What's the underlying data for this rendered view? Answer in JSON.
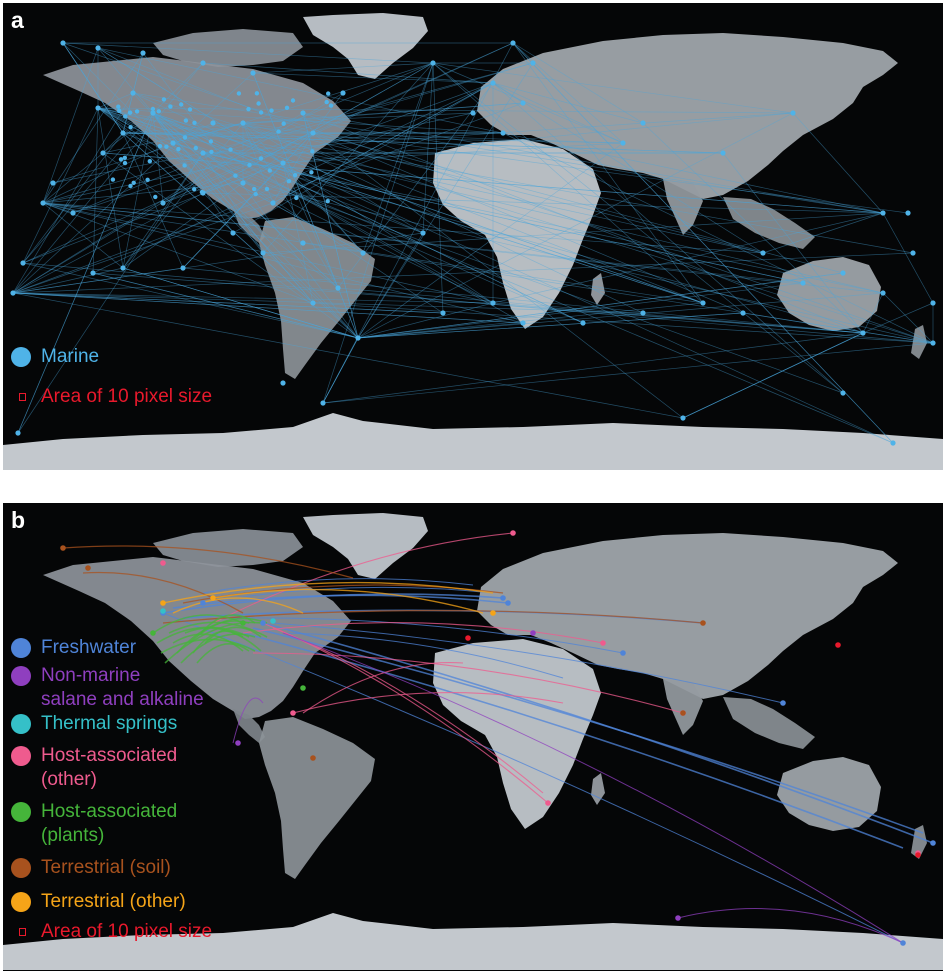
{
  "panel_a": {
    "letter": "a",
    "legend": [
      {
        "label": "Marine",
        "color": "#4fb3e8",
        "marker": "dot"
      },
      {
        "label": "Area of 10 pixel size",
        "color": "#e8192c",
        "marker": "square"
      }
    ],
    "link_color": "#4aa6dc"
  },
  "panel_b": {
    "letter": "b",
    "legend": [
      {
        "label": "Freshwater",
        "color": "#4f84d8",
        "marker": "dot"
      },
      {
        "label": "Non-marine",
        "label2": "salane and alkaline",
        "color": "#8f3fbf",
        "marker": "dot"
      },
      {
        "label": "Thermal springs",
        "color": "#35c0c8",
        "marker": "dot"
      },
      {
        "label": "Host-associated",
        "label2": "(other)",
        "color": "#ef5b8e",
        "marker": "dot"
      },
      {
        "label": "Host-associated",
        "label2": "(plants)",
        "color": "#45b53a",
        "marker": "dot"
      },
      {
        "label": "Terrestrial (soil)",
        "color": "#a8521e",
        "marker": "dot"
      },
      {
        "label": "Terrestrial (other)",
        "color": "#f5a418",
        "marker": "dot"
      },
      {
        "label": "Area of 10 pixel size",
        "color": "#e8192c",
        "marker": "square"
      }
    ]
  }
}
